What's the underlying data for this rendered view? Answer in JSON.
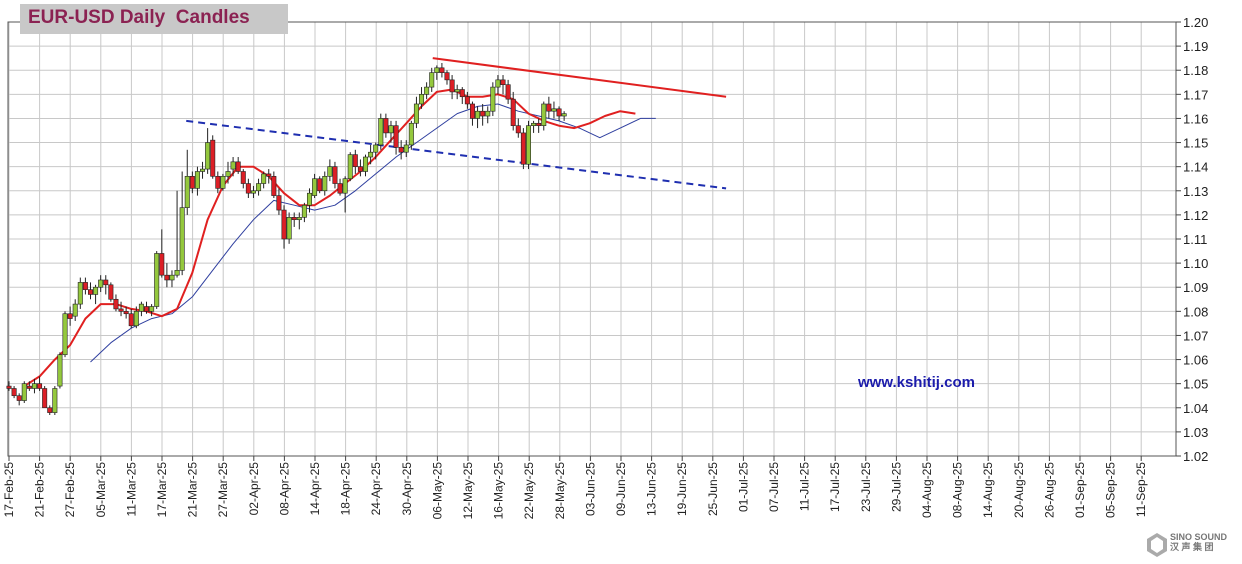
{
  "title": "EUR-USD Daily  Candles",
  "watermark": "www.kshitij.com",
  "logo_text": "SINO SOUND",
  "logo_subtext": "汉 声 集 团",
  "colors": {
    "up": "#94c83d",
    "down": "#dc1f26",
    "ma_fast": "#e02020",
    "ma_slow": "#2f3f9f",
    "trendline_solid": "#e02020",
    "trendline_dashed": "#1f2fb0",
    "grid": "#c8c8c8",
    "title": "#8b2252",
    "watermark": "#1b1bab"
  },
  "chart_data": {
    "type": "candlestick",
    "title": "EUR-USD Daily  Candles",
    "y_ticks": [
      "1.02",
      "1.03",
      "1.04",
      "1.05",
      "1.06",
      "1.07",
      "1.08",
      "1.09",
      "1.10",
      "1.11",
      "1.12",
      "1.13",
      "1.14",
      "1.15",
      "1.16",
      "1.17",
      "1.18",
      "1.19",
      "1.20"
    ],
    "ylim": [
      1.02,
      1.2
    ],
    "x_ticks": [
      "17-Feb-25",
      "21-Feb-25",
      "27-Feb-25",
      "05-Mar-25",
      "11-Mar-25",
      "17-Mar-25",
      "21-Mar-25",
      "27-Mar-25",
      "02-Apr-25",
      "08-Apr-25",
      "14-Apr-25",
      "18-Apr-25",
      "24-Apr-25",
      "30-Apr-25",
      "06-May-25",
      "12-May-25",
      "16-May-25",
      "22-May-25",
      "28-May-25",
      "03-Jun-25",
      "09-Jun-25",
      "13-Jun-25",
      "19-Jun-25",
      "25-Jun-25",
      "01-Jul-25",
      "07-Jul-25",
      "11-Jul-25",
      "17-Jul-25",
      "23-Jul-25",
      "29-Jul-25",
      "04-Aug-25",
      "08-Aug-25",
      "14-Aug-25",
      "20-Aug-25",
      "26-Aug-25",
      "01-Sep-25",
      "05-Sep-25",
      "11-Sep-25"
    ],
    "grid": true,
    "candles": [
      [
        1.049,
        1.051,
        1.047,
        1.048
      ],
      [
        1.048,
        1.049,
        1.044,
        1.045
      ],
      [
        1.045,
        1.046,
        1.041,
        1.043
      ],
      [
        1.043,
        1.051,
        1.042,
        1.05
      ],
      [
        1.049,
        1.051,
        1.047,
        1.048
      ],
      [
        1.048,
        1.052,
        1.046,
        1.05
      ],
      [
        1.05,
        1.053,
        1.047,
        1.048
      ],
      [
        1.048,
        1.049,
        1.04,
        1.04
      ],
      [
        1.04,
        1.041,
        1.037,
        1.038
      ],
      [
        1.038,
        1.049,
        1.037,
        1.048
      ],
      [
        1.049,
        1.063,
        1.048,
        1.062
      ],
      [
        1.062,
        1.08,
        1.061,
        1.079
      ],
      [
        1.079,
        1.082,
        1.074,
        1.077
      ],
      [
        1.078,
        1.085,
        1.076,
        1.083
      ],
      [
        1.083,
        1.094,
        1.081,
        1.092
      ],
      [
        1.092,
        1.094,
        1.087,
        1.089
      ],
      [
        1.089,
        1.092,
        1.085,
        1.087
      ],
      [
        1.087,
        1.091,
        1.083,
        1.09
      ],
      [
        1.09,
        1.095,
        1.088,
        1.093
      ],
      [
        1.093,
        1.095,
        1.087,
        1.091
      ],
      [
        1.091,
        1.092,
        1.084,
        1.085
      ],
      [
        1.085,
        1.087,
        1.08,
        1.081
      ],
      [
        1.081,
        1.084,
        1.078,
        1.08
      ],
      [
        1.08,
        1.082,
        1.077,
        1.079
      ],
      [
        1.079,
        1.081,
        1.073,
        1.074
      ],
      [
        1.074,
        1.082,
        1.073,
        1.08
      ],
      [
        1.08,
        1.084,
        1.078,
        1.083
      ],
      [
        1.082,
        1.084,
        1.079,
        1.08
      ],
      [
        1.08,
        1.083,
        1.078,
        1.082
      ],
      [
        1.082,
        1.105,
        1.081,
        1.104
      ],
      [
        1.104,
        1.114,
        1.094,
        1.095
      ],
      [
        1.095,
        1.1,
        1.09,
        1.093
      ],
      [
        1.093,
        1.097,
        1.09,
        1.095
      ],
      [
        1.095,
        1.13,
        1.094,
        1.097
      ],
      [
        1.097,
        1.138,
        1.095,
        1.123
      ],
      [
        1.123,
        1.147,
        1.12,
        1.136
      ],
      [
        1.136,
        1.138,
        1.129,
        1.131
      ],
      [
        1.131,
        1.14,
        1.128,
        1.138
      ],
      [
        1.138,
        1.142,
        1.135,
        1.139
      ],
      [
        1.139,
        1.156,
        1.137,
        1.15
      ],
      [
        1.151,
        1.153,
        1.135,
        1.136
      ],
      [
        1.136,
        1.138,
        1.129,
        1.131
      ],
      [
        1.131,
        1.137,
        1.13,
        1.136
      ],
      [
        1.136,
        1.142,
        1.133,
        1.138
      ],
      [
        1.139,
        1.144,
        1.136,
        1.142
      ],
      [
        1.142,
        1.144,
        1.137,
        1.138
      ],
      [
        1.138,
        1.139,
        1.131,
        1.133
      ],
      [
        1.133,
        1.135,
        1.127,
        1.129
      ],
      [
        1.129,
        1.132,
        1.127,
        1.13
      ],
      [
        1.13,
        1.135,
        1.128,
        1.133
      ],
      [
        1.133,
        1.138,
        1.131,
        1.137
      ],
      [
        1.137,
        1.139,
        1.133,
        1.136
      ],
      [
        1.136,
        1.138,
        1.127,
        1.128
      ],
      [
        1.128,
        1.131,
        1.12,
        1.122
      ],
      [
        1.122,
        1.124,
        1.106,
        1.11
      ],
      [
        1.11,
        1.121,
        1.108,
        1.119
      ],
      [
        1.119,
        1.121,
        1.115,
        1.118
      ],
      [
        1.118,
        1.121,
        1.114,
        1.119
      ],
      [
        1.119,
        1.125,
        1.117,
        1.124
      ],
      [
        1.124,
        1.131,
        1.121,
        1.129
      ],
      [
        1.128,
        1.137,
        1.127,
        1.135
      ],
      [
        1.135,
        1.136,
        1.129,
        1.13
      ],
      [
        1.13,
        1.138,
        1.128,
        1.136
      ],
      [
        1.136,
        1.143,
        1.134,
        1.14
      ],
      [
        1.14,
        1.142,
        1.131,
        1.133
      ],
      [
        1.133,
        1.135,
        1.128,
        1.129
      ],
      [
        1.129,
        1.136,
        1.121,
        1.135
      ],
      [
        1.135,
        1.146,
        1.134,
        1.145
      ],
      [
        1.145,
        1.147,
        1.137,
        1.14
      ],
      [
        1.14,
        1.143,
        1.136,
        1.138
      ],
      [
        1.138,
        1.145,
        1.136,
        1.144
      ],
      [
        1.144,
        1.149,
        1.141,
        1.146
      ],
      [
        1.146,
        1.15,
        1.143,
        1.149
      ],
      [
        1.149,
        1.162,
        1.147,
        1.16
      ],
      [
        1.16,
        1.162,
        1.152,
        1.154
      ],
      [
        1.154,
        1.159,
        1.15,
        1.157
      ],
      [
        1.157,
        1.159,
        1.145,
        1.148
      ],
      [
        1.148,
        1.151,
        1.143,
        1.146
      ],
      [
        1.146,
        1.151,
        1.144,
        1.149
      ],
      [
        1.149,
        1.159,
        1.147,
        1.158
      ],
      [
        1.158,
        1.169,
        1.156,
        1.166
      ],
      [
        1.166,
        1.173,
        1.164,
        1.17
      ],
      [
        1.17,
        1.175,
        1.168,
        1.173
      ],
      [
        1.173,
        1.181,
        1.171,
        1.179
      ],
      [
        1.179,
        1.182,
        1.176,
        1.181
      ],
      [
        1.181,
        1.183,
        1.177,
        1.179
      ],
      [
        1.179,
        1.18,
        1.174,
        1.176
      ],
      [
        1.176,
        1.178,
        1.168,
        1.171
      ],
      [
        1.171,
        1.174,
        1.168,
        1.172
      ],
      [
        1.172,
        1.173,
        1.166,
        1.169
      ],
      [
        1.169,
        1.171,
        1.164,
        1.166
      ],
      [
        1.166,
        1.167,
        1.157,
        1.16
      ],
      [
        1.16,
        1.165,
        1.156,
        1.163
      ],
      [
        1.163,
        1.166,
        1.157,
        1.161
      ],
      [
        1.161,
        1.165,
        1.158,
        1.163
      ],
      [
        1.163,
        1.175,
        1.161,
        1.173
      ],
      [
        1.173,
        1.178,
        1.17,
        1.176
      ],
      [
        1.176,
        1.178,
        1.17,
        1.174
      ],
      [
        1.174,
        1.176,
        1.166,
        1.168
      ],
      [
        1.168,
        1.171,
        1.155,
        1.157
      ],
      [
        1.157,
        1.16,
        1.152,
        1.154
      ],
      [
        1.154,
        1.156,
        1.139,
        1.141
      ],
      [
        1.141,
        1.159,
        1.139,
        1.157
      ],
      [
        1.157,
        1.159,
        1.154,
        1.158
      ],
      [
        1.158,
        1.16,
        1.154,
        1.157
      ],
      [
        1.157,
        1.167,
        1.155,
        1.166
      ],
      [
        1.166,
        1.169,
        1.16,
        1.163
      ],
      [
        1.163,
        1.167,
        1.16,
        1.164
      ],
      [
        1.164,
        1.165,
        1.159,
        1.161
      ],
      [
        1.161,
        1.163,
        1.159,
        1.162
      ]
    ],
    "ma_fast": [
      [
        3,
        1.049
      ],
      [
        6,
        1.053
      ],
      [
        9,
        1.06
      ],
      [
        12,
        1.066
      ],
      [
        15,
        1.077
      ],
      [
        18,
        1.083
      ],
      [
        21,
        1.083
      ],
      [
        24,
        1.081
      ],
      [
        27,
        1.08
      ],
      [
        30,
        1.078
      ],
      [
        33,
        1.081
      ],
      [
        36,
        1.096
      ],
      [
        39,
        1.118
      ],
      [
        42,
        1.132
      ],
      [
        45,
        1.14
      ],
      [
        48,
        1.14
      ],
      [
        51,
        1.136
      ],
      [
        54,
        1.129
      ],
      [
        57,
        1.124
      ],
      [
        60,
        1.124
      ],
      [
        63,
        1.128
      ],
      [
        66,
        1.133
      ],
      [
        69,
        1.138
      ],
      [
        72,
        1.144
      ],
      [
        75,
        1.151
      ],
      [
        78,
        1.158
      ],
      [
        81,
        1.165
      ],
      [
        84,
        1.171
      ],
      [
        87,
        1.172
      ],
      [
        90,
        1.169
      ],
      [
        93,
        1.169
      ],
      [
        96,
        1.17
      ],
      [
        99,
        1.168
      ],
      [
        102,
        1.162
      ],
      [
        105,
        1.159
      ],
      [
        108,
        1.157
      ],
      [
        111,
        1.156
      ],
      [
        114,
        1.158
      ],
      [
        117,
        1.161
      ],
      [
        120,
        1.163
      ],
      [
        123,
        1.162
      ]
    ],
    "ma_slow": [
      [
        16,
        1.059
      ],
      [
        20,
        1.067
      ],
      [
        24,
        1.073
      ],
      [
        28,
        1.077
      ],
      [
        32,
        1.079
      ],
      [
        36,
        1.086
      ],
      [
        40,
        1.097
      ],
      [
        44,
        1.108
      ],
      [
        48,
        1.118
      ],
      [
        52,
        1.126
      ],
      [
        56,
        1.124
      ],
      [
        60,
        1.122
      ],
      [
        64,
        1.124
      ],
      [
        68,
        1.13
      ],
      [
        72,
        1.137
      ],
      [
        76,
        1.144
      ],
      [
        80,
        1.15
      ],
      [
        84,
        1.156
      ],
      [
        88,
        1.162
      ],
      [
        92,
        1.165
      ],
      [
        96,
        1.166
      ],
      [
        100,
        1.163
      ],
      [
        104,
        1.161
      ],
      [
        108,
        1.159
      ],
      [
        112,
        1.156
      ],
      [
        116,
        1.152
      ],
      [
        120,
        1.156
      ],
      [
        124,
        1.16
      ],
      [
        127,
        1.16
      ]
    ],
    "trendlines": [
      {
        "style": "solid",
        "from": [
          83.2,
          1.185
        ],
        "to": [
          140.8,
          1.169
        ]
      },
      {
        "style": "dashed",
        "from": [
          34.8,
          1.159
        ],
        "to": [
          140.8,
          1.131
        ]
      }
    ]
  }
}
